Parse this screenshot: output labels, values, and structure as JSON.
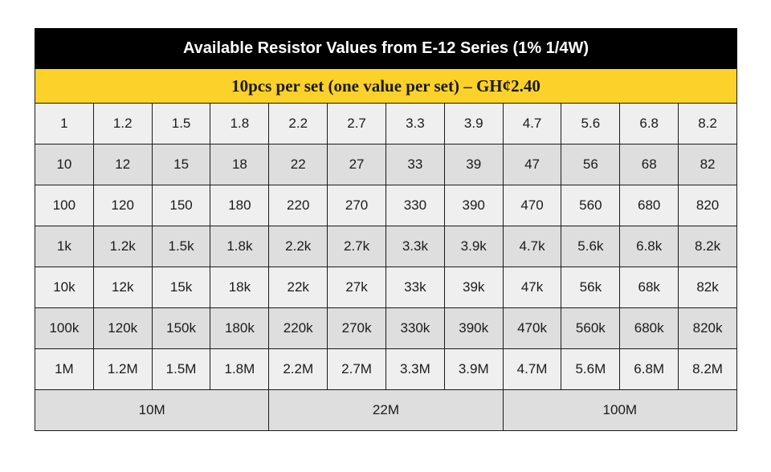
{
  "title": "Available Resistor Values from E-12 Series (1% 1/4W)",
  "subtitle": "10pcs per set (one value per set) – GH¢2.40",
  "colors": {
    "title_bg": "#000000",
    "subtitle_bg": "#fcd22a",
    "row_light": "#efefef",
    "row_dark": "#dedede"
  },
  "rows": [
    [
      "1",
      "1.2",
      "1.5",
      "1.8",
      "2.2",
      "2.7",
      "3.3",
      "3.9",
      "4.7",
      "5.6",
      "6.8",
      "8.2"
    ],
    [
      "10",
      "12",
      "15",
      "18",
      "22",
      "27",
      "33",
      "39",
      "47",
      "56",
      "68",
      "82"
    ],
    [
      "100",
      "120",
      "150",
      "180",
      "220",
      "270",
      "330",
      "390",
      "470",
      "560",
      "680",
      "820"
    ],
    [
      "1k",
      "1.2k",
      "1.5k",
      "1.8k",
      "2.2k",
      "2.7k",
      "3.3k",
      "3.9k",
      "4.7k",
      "5.6k",
      "6.8k",
      "8.2k"
    ],
    [
      "10k",
      "12k",
      "15k",
      "18k",
      "22k",
      "27k",
      "33k",
      "39k",
      "47k",
      "56k",
      "68k",
      "82k"
    ],
    [
      "100k",
      "120k",
      "150k",
      "180k",
      "220k",
      "270k",
      "330k",
      "390k",
      "470k",
      "560k",
      "680k",
      "820k"
    ],
    [
      "1M",
      "1.2M",
      "1.5M",
      "1.8M",
      "2.2M",
      "2.7M",
      "3.3M",
      "3.9M",
      "4.7M",
      "5.6M",
      "6.8M",
      "8.2M"
    ]
  ],
  "last_row": [
    "10M",
    "22M",
    "100M"
  ]
}
